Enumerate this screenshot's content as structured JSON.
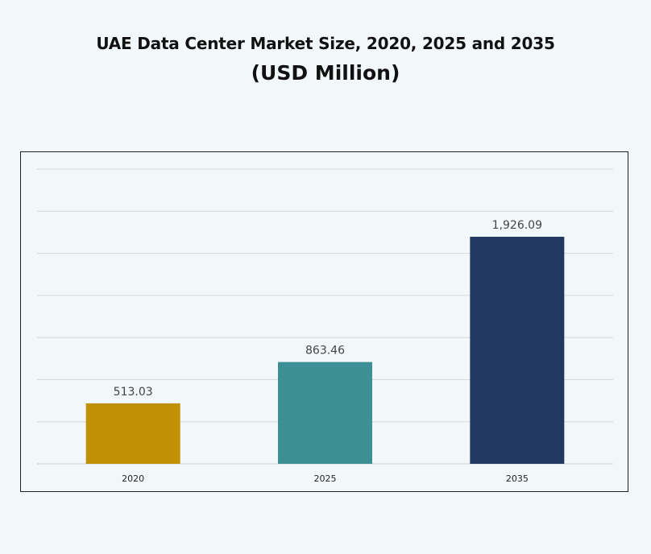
{
  "title": "UAE Data Center Market Size, 2020, 2025 and 2035",
  "subtitle": "(USD Million)",
  "colors": {
    "background": "#f2f8f9",
    "bar_2020": "#c09005",
    "bar_2025": "#3b8f95",
    "bar_2035": "#213962"
  },
  "chart_data": {
    "type": "bar",
    "title": "UAE Data Center Market Size, 2020, 2025 and 2035",
    "subtitle": "(USD Million)",
    "categories": [
      "2020",
      "2025",
      "2035"
    ],
    "values": [
      513.03,
      863.46,
      1926.09
    ],
    "value_labels": [
      "513.03",
      "863.46",
      "1,926.09"
    ],
    "bar_colors": [
      "#c09005",
      "#3b8f95",
      "#213962"
    ],
    "xlabel": "",
    "ylabel": "",
    "ylim": [
      0,
      2500
    ],
    "y_tick_interval": 357.14,
    "grid": true,
    "legend": "none"
  }
}
